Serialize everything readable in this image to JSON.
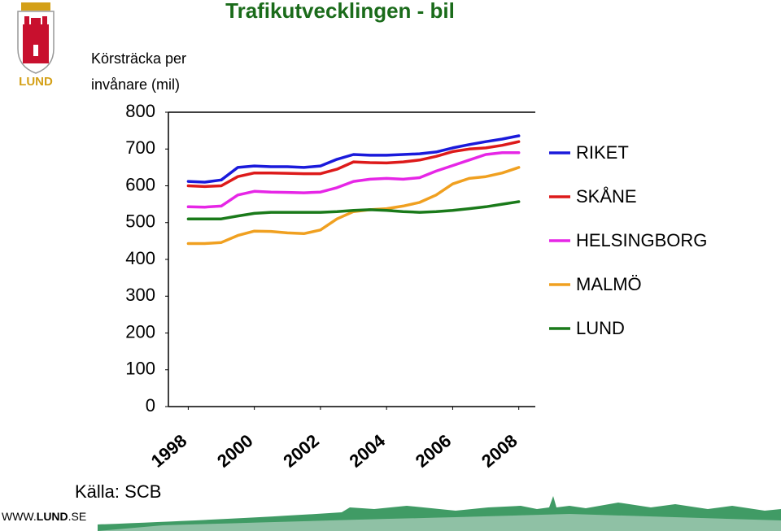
{
  "chart_data": {
    "type": "line",
    "title": "Trafikutvecklingen - bil",
    "y_label_lines": [
      "Körsträcka per",
      "invånare (mil)"
    ],
    "source": "Källa: SCB",
    "logo_text": "LUND",
    "footer": {
      "prefix": "WWW.",
      "bold": "LUND",
      "suffix": ".SE"
    },
    "x": [
      1998,
      1998.5,
      1999,
      1999.5,
      2000,
      2000.5,
      2001,
      2001.5,
      2002,
      2002.5,
      2003,
      2003.5,
      2004,
      2004.5,
      2005,
      2005.5,
      2006,
      2006.5,
      2007,
      2007.5,
      2008
    ],
    "xlim": [
      1997.4,
      2008.5
    ],
    "xticks": [
      1998,
      2000,
      2002,
      2004,
      2006,
      2008
    ],
    "ylim": [
      0,
      800
    ],
    "yticks": [
      0,
      100,
      200,
      300,
      400,
      500,
      600,
      700,
      800
    ],
    "grid": false,
    "legend": "right",
    "series": [
      {
        "name": "RIKET",
        "color": "#1a1adb",
        "values": [
          612,
          610,
          616,
          650,
          654,
          652,
          652,
          650,
          654,
          672,
          685,
          683,
          683,
          685,
          687,
          692,
          703,
          712,
          720,
          727,
          736
        ]
      },
      {
        "name": "SKÅNE",
        "color": "#dd1a1a",
        "values": [
          600,
          598,
          600,
          625,
          635,
          635,
          634,
          633,
          633,
          645,
          665,
          663,
          662,
          665,
          670,
          680,
          693,
          700,
          703,
          710,
          720
        ]
      },
      {
        "name": "HELSINGBORG",
        "color": "#e626e6",
        "values": [
          543,
          542,
          545,
          575,
          585,
          583,
          582,
          581,
          583,
          595,
          612,
          618,
          620,
          618,
          622,
          640,
          655,
          670,
          685,
          690,
          690
        ]
      },
      {
        "name": "MALMÖ",
        "color": "#f0a020",
        "values": [
          443,
          443,
          446,
          465,
          477,
          476,
          472,
          470,
          480,
          510,
          530,
          535,
          538,
          545,
          555,
          575,
          605,
          620,
          625,
          635,
          650
        ]
      },
      {
        "name": "LUND",
        "color": "#1a7a1a",
        "values": [
          510,
          510,
          510,
          518,
          525,
          528,
          528,
          528,
          528,
          530,
          533,
          535,
          533,
          530,
          528,
          530,
          533,
          538,
          543,
          550,
          557
        ]
      }
    ]
  }
}
